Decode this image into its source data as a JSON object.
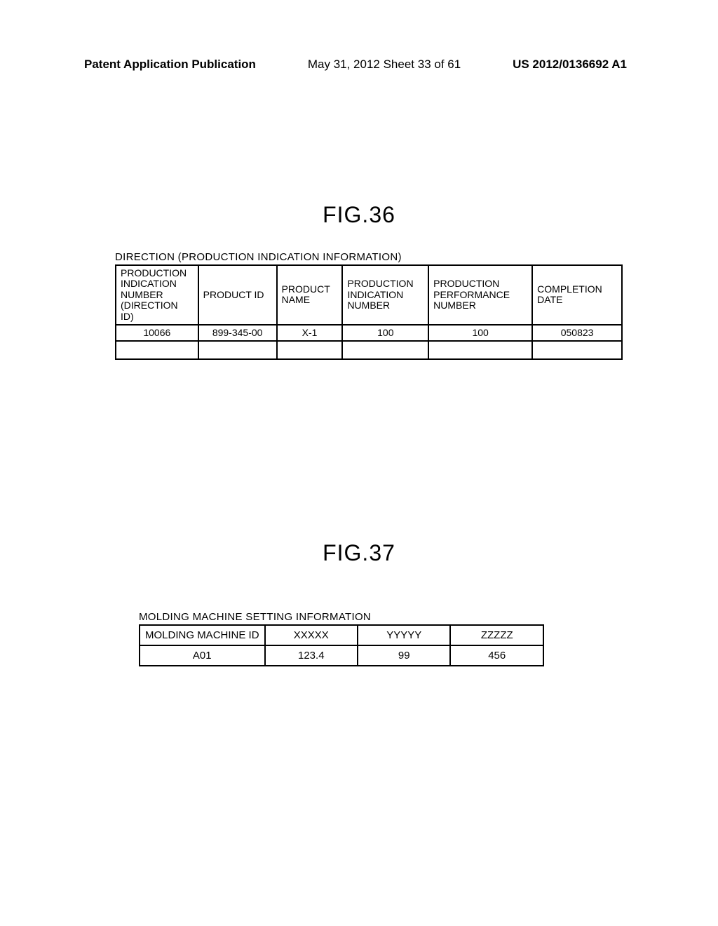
{
  "header": {
    "left": "Patent Application Publication",
    "center": "May 31, 2012  Sheet 33 of 61",
    "right": "US 2012/0136692 A1"
  },
  "fig36": {
    "title": "FIG.36",
    "caption": "DIRECTION (PRODUCTION INDICATION INFORMATION)",
    "columns": {
      "c1": "PRODUCTION INDICATION NUMBER (DIRECTION ID)",
      "c2": "PRODUCT ID",
      "c3": "PRODUCT NAME",
      "c4": "PRODUCTION INDICATION NUMBER",
      "c5": "PRODUCTION PERFORMANCE NUMBER",
      "c6": "COMPLETION DATE"
    },
    "row": {
      "c1": "10066",
      "c2": "899-345-00",
      "c3": "X-1",
      "c4": "100",
      "c5": "100",
      "c6": "050823"
    }
  },
  "fig37": {
    "title": "FIG.37",
    "caption": "MOLDING MACHINE SETTING INFORMATION",
    "columns": {
      "c1": "MOLDING MACHINE ID",
      "c2": "XXXXX",
      "c3": "YYYYY",
      "c4": "ZZZZZ"
    },
    "row": {
      "c1": "A01",
      "c2": "123.4",
      "c3": "99",
      "c4": "456"
    }
  }
}
